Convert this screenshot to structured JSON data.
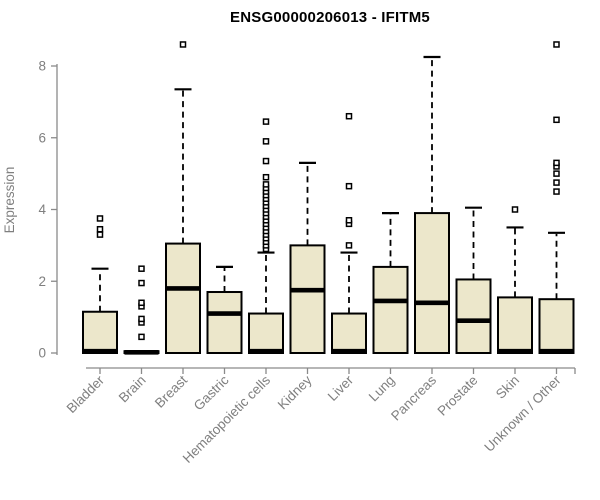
{
  "chart_data": {
    "type": "boxplot",
    "title": "ENSG00000206013 - IFITM5",
    "xlabel": "",
    "ylabel": "Expression",
    "ylim": [
      0,
      8.7
    ],
    "yticks": [
      0,
      2,
      4,
      6,
      8
    ],
    "grid": false,
    "legend": "none",
    "categories": [
      "Bladder",
      "Brain",
      "Breast",
      "Gastric",
      "Hematopoietic cells",
      "Kidney",
      "Liver",
      "Lung",
      "Pancreas",
      "Prostate",
      "Skin",
      "Unknown / Other"
    ],
    "boxes": [
      {
        "category": "Bladder",
        "q1": 0,
        "median": 0.05,
        "q3": 1.15,
        "whisker_low": 0,
        "whisker_high": 2.35,
        "outliers": [
          3.3,
          3.45,
          3.75
        ]
      },
      {
        "category": "Brain",
        "q1": 0,
        "median": 0.02,
        "q3": 0.05,
        "whisker_low": 0,
        "whisker_high": 0.05,
        "outliers": [
          0.45,
          0.85,
          0.95,
          1.3,
          1.4,
          1.95,
          2.35
        ]
      },
      {
        "category": "Breast",
        "q1": 0,
        "median": 1.8,
        "q3": 3.05,
        "whisker_low": 0,
        "whisker_high": 7.35,
        "outliers": [
          8.6
        ]
      },
      {
        "category": "Gastric",
        "q1": 0,
        "median": 1.1,
        "q3": 1.7,
        "whisker_low": 0,
        "whisker_high": 2.4,
        "outliers": []
      },
      {
        "category": "Hematopoietic cells",
        "q1": 0,
        "median": 0.05,
        "q3": 1.1,
        "whisker_low": 0,
        "whisker_high": 2.8,
        "outliers": [
          2.9,
          3.0,
          3.1,
          3.2,
          3.3,
          3.4,
          3.5,
          3.6,
          3.7,
          3.8,
          3.9,
          4.0,
          4.1,
          4.2,
          4.3,
          4.4,
          4.5,
          4.6,
          4.7,
          4.9,
          5.35,
          5.9,
          6.45
        ]
      },
      {
        "category": "Kidney",
        "q1": 0,
        "median": 1.75,
        "q3": 3.0,
        "whisker_low": 0,
        "whisker_high": 5.3,
        "outliers": []
      },
      {
        "category": "Liver",
        "q1": 0,
        "median": 0.05,
        "q3": 1.1,
        "whisker_low": 0,
        "whisker_high": 2.8,
        "outliers": [
          3.0,
          3.6,
          3.7,
          4.65,
          6.6
        ]
      },
      {
        "category": "Lung",
        "q1": 0,
        "median": 1.45,
        "q3": 2.4,
        "whisker_low": 0,
        "whisker_high": 3.9,
        "outliers": []
      },
      {
        "category": "Pancreas",
        "q1": 0,
        "median": 1.4,
        "q3": 3.9,
        "whisker_low": 0,
        "whisker_high": 8.25,
        "outliers": []
      },
      {
        "category": "Prostate",
        "q1": 0,
        "median": 0.9,
        "q3": 2.05,
        "whisker_low": 0,
        "whisker_high": 4.05,
        "outliers": []
      },
      {
        "category": "Skin",
        "q1": 0,
        "median": 0.05,
        "q3": 1.55,
        "whisker_low": 0,
        "whisker_high": 3.5,
        "outliers": [
          4.0
        ]
      },
      {
        "category": "Unknown / Other",
        "q1": 0,
        "median": 0.05,
        "q3": 1.5,
        "whisker_low": 0,
        "whisker_high": 3.35,
        "outliers": [
          4.5,
          4.75,
          5.0,
          5.2,
          5.3,
          6.5,
          8.6
        ]
      }
    ],
    "colors": {
      "box_fill": "#ece7cb",
      "box_border": "#000000",
      "median": "#000000",
      "whisker": "#000000",
      "outlier_stroke": "#000000",
      "outlier_fill": "#ffffff",
      "axis": "#8a8a8a",
      "tick_label": "#7f7f7f",
      "title": "#000000",
      "background": "#ffffff"
    }
  }
}
